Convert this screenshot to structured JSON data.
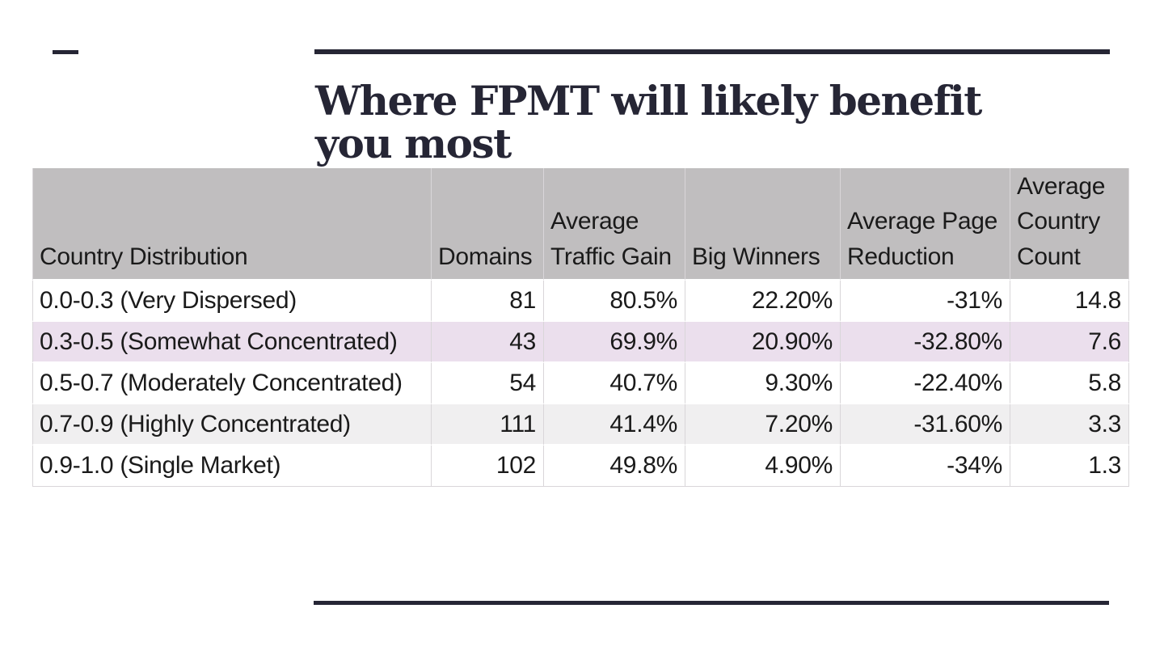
{
  "slide": {
    "title": "Where FPMT will likely benefit you most"
  },
  "table": {
    "columns": [
      "Country Distribution",
      "Domains",
      "Average Traffic Gain",
      "Big Winners",
      "Average Page Reduction",
      "Average Country Count"
    ],
    "rows": [
      {
        "cells": [
          "0.0-0.3 (Very Dispersed)",
          "81",
          "80.5%",
          "22.20%",
          "-31%",
          "14.8"
        ],
        "highlight": "none"
      },
      {
        "cells": [
          "0.3-0.5 (Somewhat Concentrated)",
          "43",
          "69.9%",
          "20.90%",
          "-32.80%",
          "7.6"
        ],
        "highlight": "pink"
      },
      {
        "cells": [
          "0.5-0.7 (Moderately Concentrated)",
          "54",
          "40.7%",
          "9.30%",
          "-22.40%",
          "5.8"
        ],
        "highlight": "none"
      },
      {
        "cells": [
          "0.7-0.9 (Highly Concentrated)",
          "111",
          "41.4%",
          "7.20%",
          "-31.60%",
          "3.3"
        ],
        "highlight": "gray"
      },
      {
        "cells": [
          "0.9-1.0 (Single Market)",
          "102",
          "49.8%",
          "4.90%",
          "-34%",
          "1.3"
        ],
        "highlight": "none"
      }
    ]
  },
  "theme": {
    "accent": "#262635",
    "header_bg": "#c0bebf",
    "row_pink": "#ebdfed",
    "row_gray": "#f0eff0",
    "border": "#d9d6d9"
  }
}
